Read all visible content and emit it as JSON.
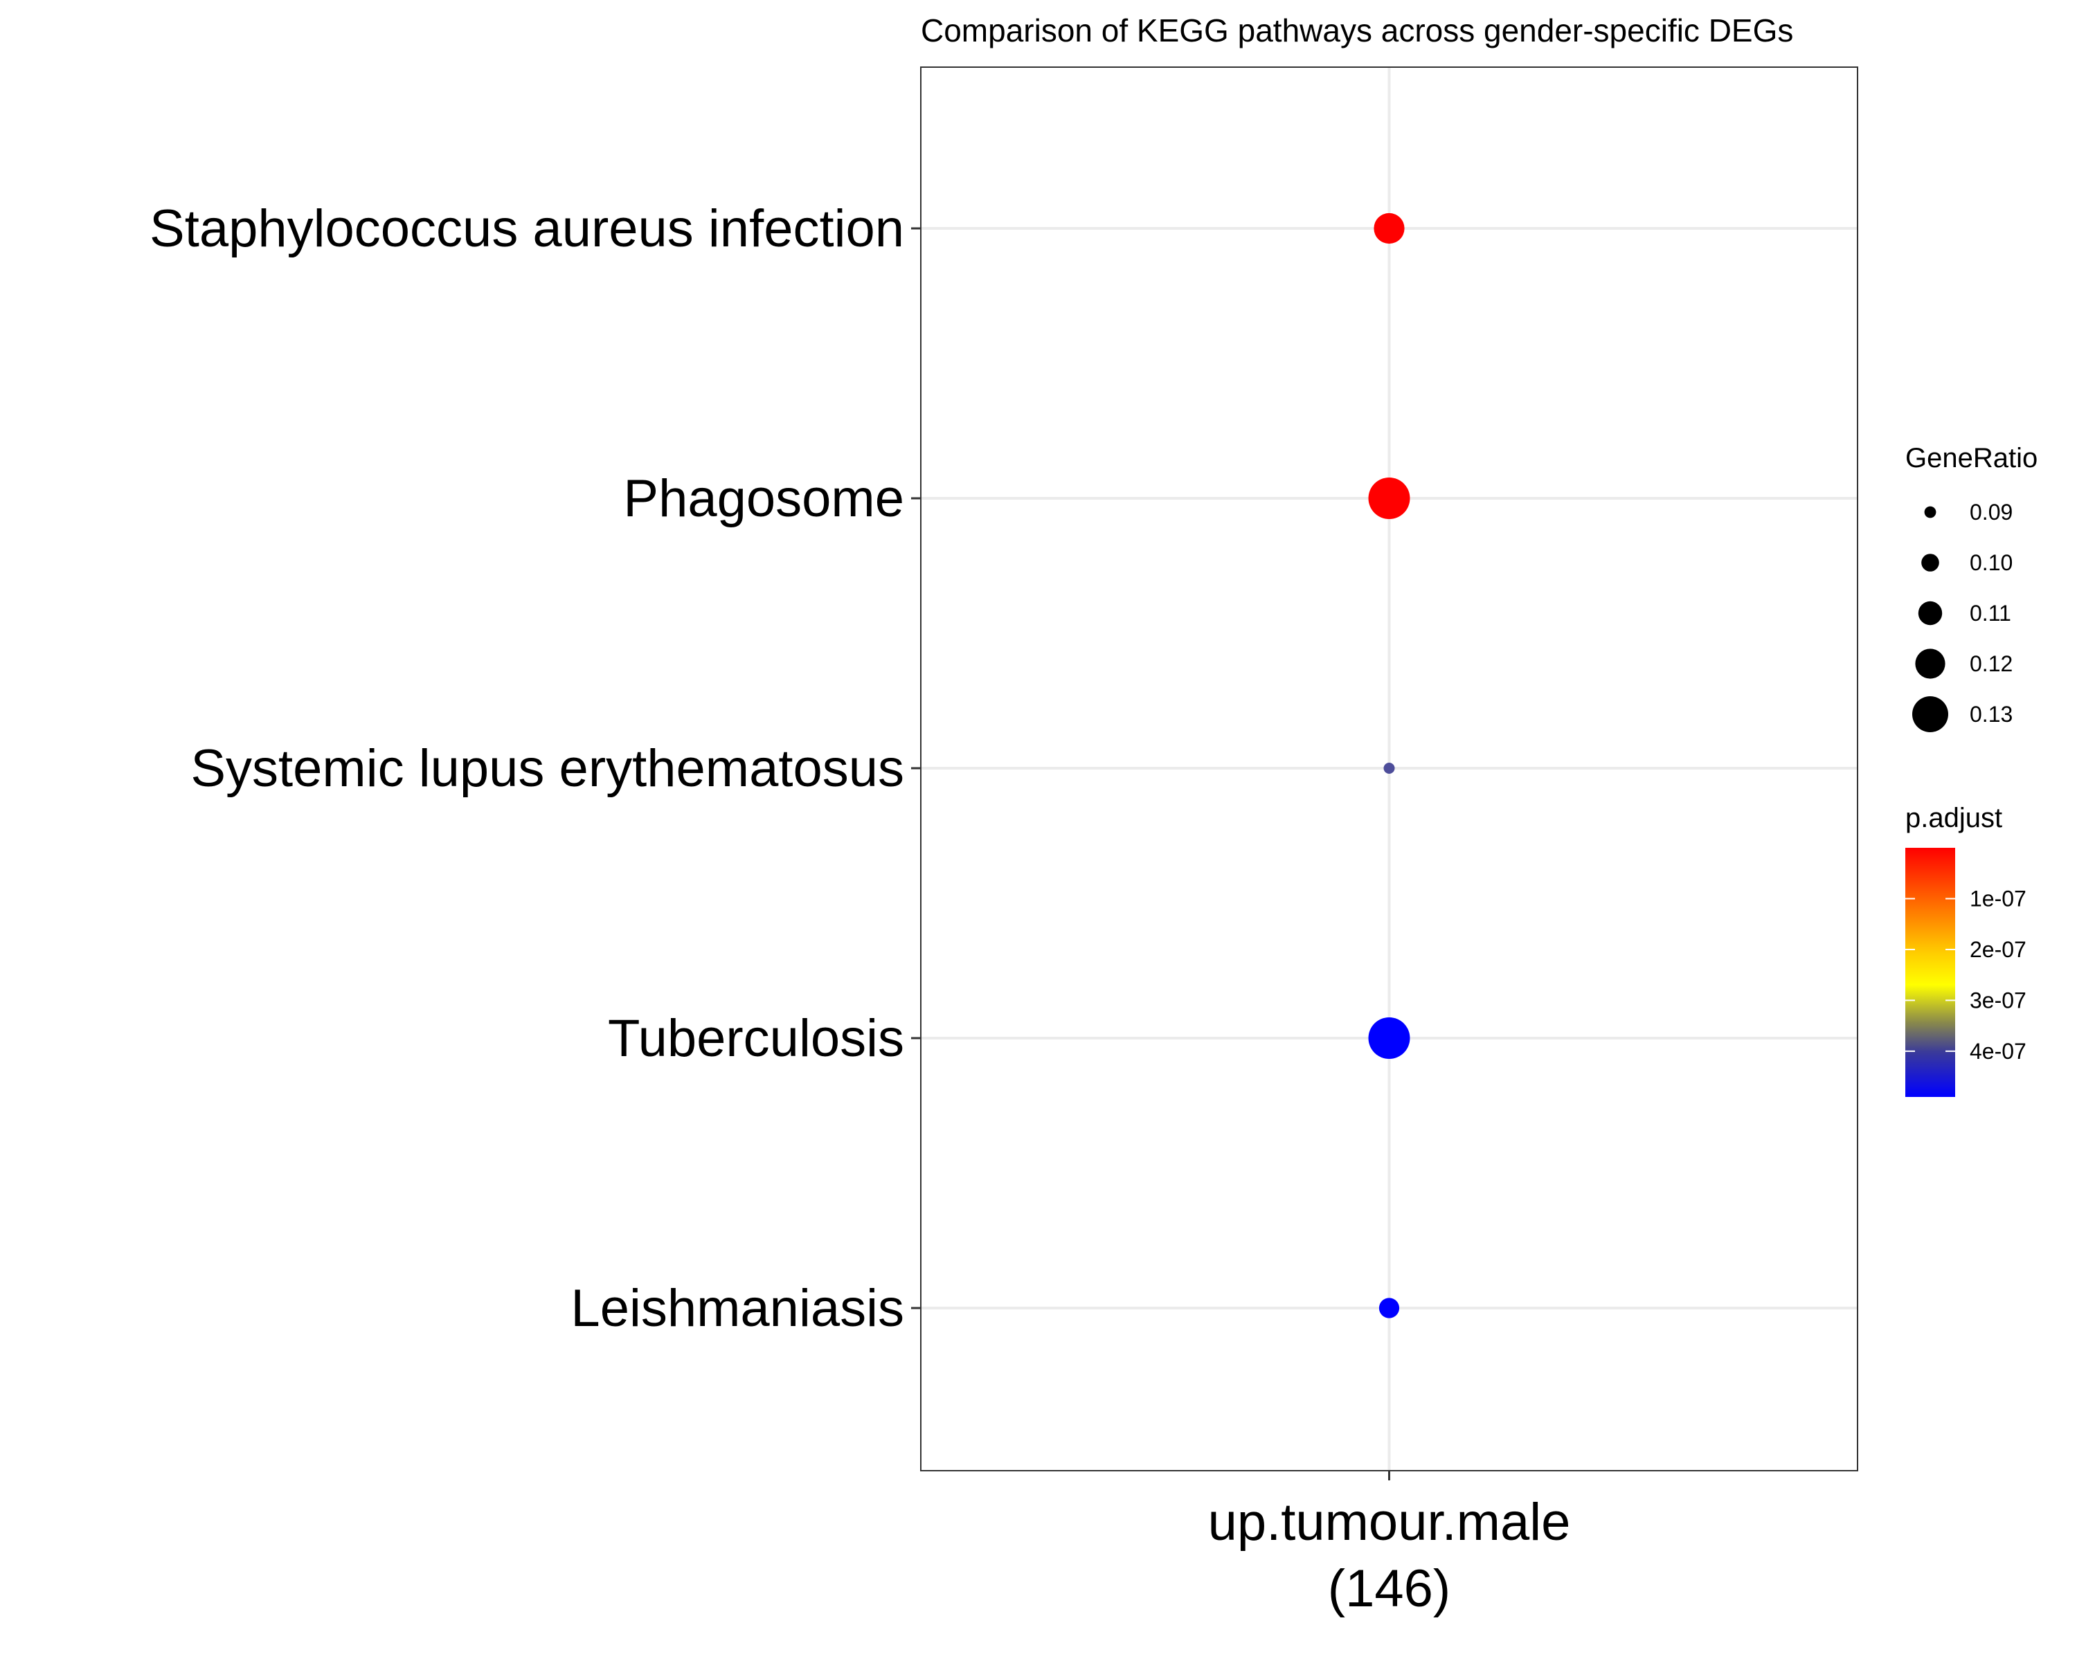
{
  "chart_data": {
    "type": "scatter",
    "title": "Comparison of KEGG pathways across gender-specific DEGs",
    "x_categories": [
      "up.tumour.male\n(146)"
    ],
    "y_categories": [
      "Staphylococcus aureus infection",
      "Phagosome",
      "Systemic lupus erythematosus",
      "Tuberculosis",
      "Leishmaniasis"
    ],
    "points": [
      {
        "pathway": "Staphylococcus aureus infection",
        "x": "up.tumour.male\n(146)",
        "gene_ratio": 0.112,
        "p_adjust": 2e-09,
        "color": "#ff0000"
      },
      {
        "pathway": "Phagosome",
        "x": "up.tumour.male\n(146)",
        "gene_ratio": 0.13,
        "p_adjust": 1e-09,
        "color": "#ff0000"
      },
      {
        "pathway": "Systemic lupus erythematosus",
        "x": "up.tumour.male\n(146)",
        "gene_ratio": 0.08,
        "p_adjust": 3.9e-07,
        "color": "#4d4d9a"
      },
      {
        "pathway": "Tuberculosis",
        "x": "up.tumour.male\n(146)",
        "gene_ratio": 0.13,
        "p_adjust": 4.85e-07,
        "color": "#0000ff"
      },
      {
        "pathway": "Leishmaniasis",
        "x": "up.tumour.male\n(146)",
        "gene_ratio": 0.095,
        "p_adjust": 4.8e-07,
        "color": "#0000ff"
      }
    ],
    "size_legend": {
      "title": "GeneRatio",
      "entries": [
        {
          "label": "0.09",
          "value": 0.09
        },
        {
          "label": "0.10",
          "value": 0.1
        },
        {
          "label": "0.11",
          "value": 0.11
        },
        {
          "label": "0.12",
          "value": 0.12
        },
        {
          "label": "0.13",
          "value": 0.13
        }
      ]
    },
    "color_legend": {
      "title": "p.adjust",
      "range": [
        0,
        4.9e-07
      ],
      "low_color": "#ff0000",
      "high_color": "#0000ff",
      "ticks": [
        {
          "label": "1e-07",
          "value": 1e-07
        },
        {
          "label": "2e-07",
          "value": 2e-07
        },
        {
          "label": "3e-07",
          "value": 3e-07
        },
        {
          "label": "4e-07",
          "value": 4e-07
        }
      ]
    },
    "grid": true,
    "legend_position": "right"
  }
}
